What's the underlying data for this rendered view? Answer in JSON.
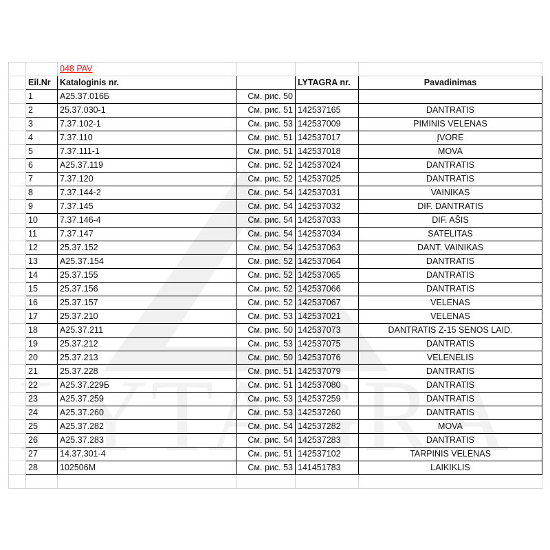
{
  "sheet": {
    "caption": "048 PAV",
    "caption_color": "#e8211c",
    "headers": {
      "no": "Eil.Nr",
      "catalog": "Kataloginis nr.",
      "ref": "",
      "lytagra": "LYTAGRA nr.",
      "name": "Pavadinimas"
    },
    "rows": [
      {
        "no": "1",
        "catalog": "A25.37.016Б",
        "ref": "См. рис. 50",
        "lytagra": "",
        "name": ""
      },
      {
        "no": "2",
        "catalog": "25.37.030-1",
        "ref": "См. рис. 51",
        "lytagra": "142537165",
        "name": "DANTRATIS"
      },
      {
        "no": "3",
        "catalog": "7.37.102-1",
        "ref": "См. рис. 53",
        "lytagra": "142537009",
        "name": "PIMINIS VELENAS"
      },
      {
        "no": "4",
        "catalog": "7.37.110",
        "ref": "См. рис. 51",
        "lytagra": "142537017",
        "name": "ĮVORĖ"
      },
      {
        "no": "5",
        "catalog": "7.37.111-1",
        "ref": "См. рис. 51",
        "lytagra": "142537018",
        "name": "MOVA"
      },
      {
        "no": "6",
        "catalog": "A25.37.119",
        "ref": "См. рис. 52",
        "lytagra": "142537024",
        "name": "DANTRATIS"
      },
      {
        "no": "7",
        "catalog": "7.37.120",
        "ref": "См. рис. 52",
        "lytagra": "142537025",
        "name": "DANTRATIS"
      },
      {
        "no": "8",
        "catalog": "7.37.144-2",
        "ref": "См. рис. 54",
        "lytagra": "142537031",
        "name": "VAINIKAS"
      },
      {
        "no": "9",
        "catalog": "7.37.145",
        "ref": "См. рис. 54",
        "lytagra": "142537032",
        "name": "DIF.  DANTRATIS"
      },
      {
        "no": "10",
        "catalog": "7.37.146-4",
        "ref": "См. рис. 54",
        "lytagra": "142537033",
        "name": "DIF. AŠIS"
      },
      {
        "no": "11",
        "catalog": "7.37.147",
        "ref": "См. рис. 54",
        "lytagra": "142537034",
        "name": "SATELITAS"
      },
      {
        "no": "12",
        "catalog": "25.37.152",
        "ref": "См. рис. 54",
        "lytagra": "142537063",
        "name": "DANT. VAINIKAS"
      },
      {
        "no": "13",
        "catalog": "A25.37.154",
        "ref": "См. рис. 52",
        "lytagra": "142537064",
        "name": "DANTRATIS"
      },
      {
        "no": "14",
        "catalog": "25.37.155",
        "ref": "См. рис. 52",
        "lytagra": "142537065",
        "name": "DANTRATIS"
      },
      {
        "no": "15",
        "catalog": "25.37.156",
        "ref": "См. рис. 52",
        "lytagra": "142537066",
        "name": "DANTRATIS"
      },
      {
        "no": "16",
        "catalog": "25.37.157",
        "ref": "См. рис. 52",
        "lytagra": "142537067",
        "name": "VELENAS"
      },
      {
        "no": "17",
        "catalog": "25.37.210",
        "ref": "См. рис. 53",
        "lytagra": "142537021",
        "name": "VELENAS"
      },
      {
        "no": "18",
        "catalog": "A25.37.211",
        "ref": "См. рис. 50",
        "lytagra": "142537073",
        "name": "DANTRATIS Z-15 SENOS LAID."
      },
      {
        "no": "19",
        "catalog": "25.37.212",
        "ref": "См. рис. 53",
        "lytagra": "142537075",
        "name": "DANTRATIS"
      },
      {
        "no": "20",
        "catalog": "25.37.213",
        "ref": "См. рис. 50",
        "lytagra": "142537076",
        "name": "VELENĖLIS"
      },
      {
        "no": "21",
        "catalog": "25.37.228",
        "ref": "См. рис. 51",
        "lytagra": "142537079",
        "name": "DANTRATIS"
      },
      {
        "no": "22",
        "catalog": "A25.37.229Б",
        "ref": "См. рис. 51",
        "lytagra": "142537080",
        "name": "DANTRATIS"
      },
      {
        "no": "23",
        "catalog": "A25.37.259",
        "ref": "См. рис. 53",
        "lytagra": "142537259",
        "name": "DANTRATIS"
      },
      {
        "no": "24",
        "catalog": "A25.37.260",
        "ref": "См. рис. 53",
        "lytagra": "142537260",
        "name": "DANTRATIS"
      },
      {
        "no": "25",
        "catalog": "A25.37.282",
        "ref": "См. рис. 54",
        "lytagra": "142537282",
        "name": "MOVA"
      },
      {
        "no": "26",
        "catalog": "A25.37.283",
        "ref": "См. рис. 54",
        "lytagra": "142537283",
        "name": "DANTRATIS"
      },
      {
        "no": "27",
        "catalog": "14.37.301-4",
        "ref": "См. рис. 51",
        "lytagra": "142537102",
        "name": "TARPINIS VELENAS"
      },
      {
        "no": "28",
        "catalog": "102506M",
        "ref": "См. рис. 53",
        "lytagra": "141451783",
        "name": "LAIKIKLIS"
      }
    ]
  },
  "watermark": {
    "text": "LYTAGRA",
    "icon": "triangle-logo"
  }
}
